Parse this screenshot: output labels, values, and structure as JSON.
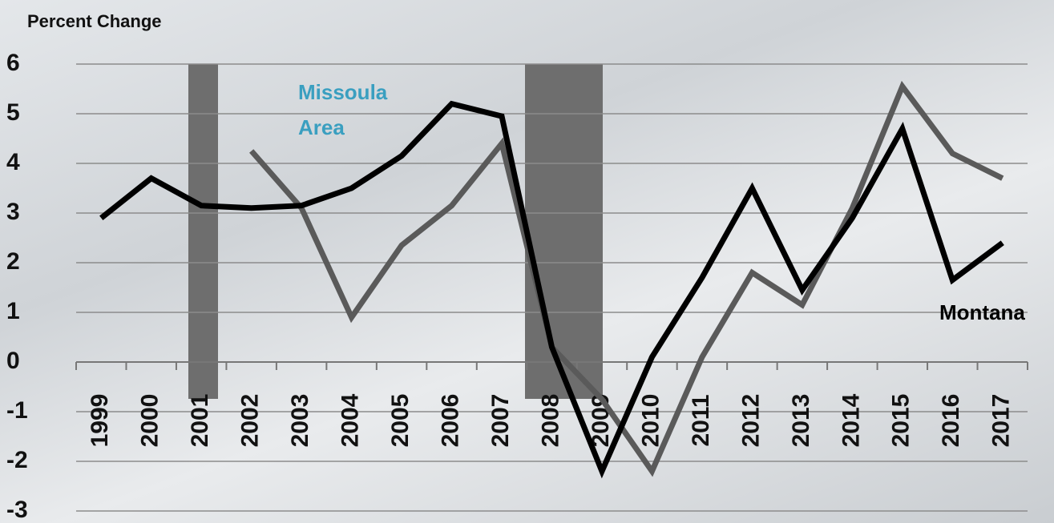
{
  "chart_data": {
    "type": "line",
    "y_label": "Percent Change",
    "categories": [
      "1999",
      "2000",
      "2001",
      "2002",
      "2003",
      "2004",
      "2005",
      "2006",
      "2007",
      "2008",
      "2009",
      "2010",
      "2011",
      "2012",
      "2013",
      "2014",
      "2015",
      "2016",
      "2017"
    ],
    "series": [
      {
        "name": "Missoula Area",
        "color": "#5a5a5a",
        "values": [
          null,
          null,
          null,
          4.25,
          3.1,
          0.9,
          2.35,
          3.15,
          4.4,
          0.3,
          -0.75,
          -2.2,
          0.1,
          1.8,
          1.15,
          3.1,
          5.55,
          4.2,
          3.7
        ]
      },
      {
        "name": "Montana",
        "color": "#000000",
        "values": [
          2.9,
          3.7,
          3.15,
          3.1,
          3.15,
          3.5,
          4.15,
          5.2,
          4.95,
          0.3,
          -2.2,
          0.1,
          1.7,
          3.5,
          1.45,
          2.9,
          4.7,
          1.65,
          2.4
        ]
      }
    ],
    "ylim": [
      -3,
      6
    ],
    "yticks": [
      -3,
      -2,
      -1,
      0,
      1,
      2,
      3,
      4,
      5,
      6
    ],
    "grid": true
  }
}
